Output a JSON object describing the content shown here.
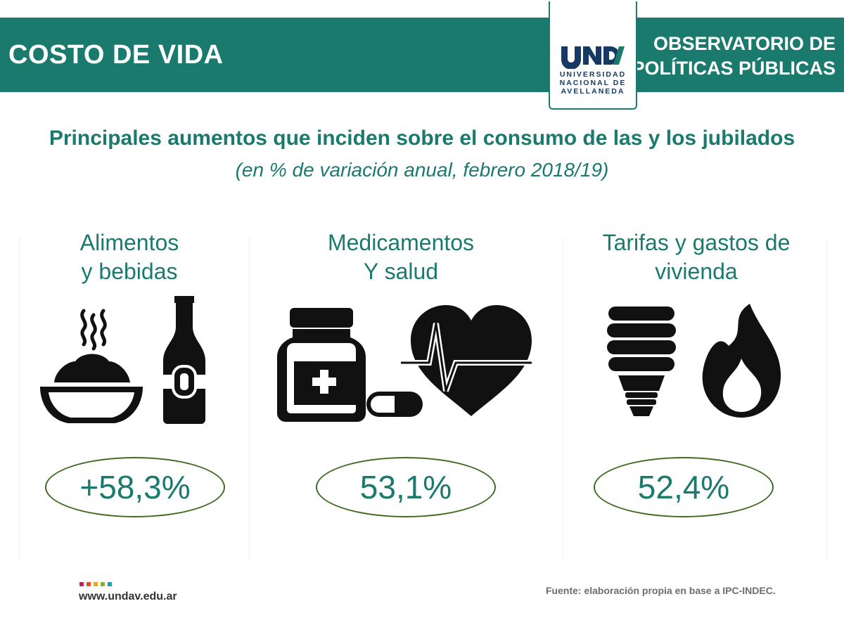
{
  "header": {
    "left_title": "COSTO DE VIDA",
    "right_title_line1": "OBSERVATORIO DE",
    "right_title_line2": "POLÍTICAS PÚBLICAS",
    "logo": {
      "mark_text": "UNDAV",
      "line1": "UNIVERSIDAD",
      "line2": "NACIONAL DE",
      "line3": "AVELLANEDA"
    }
  },
  "title": "Principales aumentos que inciden sobre el consumo de las y los jubilados",
  "subtitle": "(en % de variación anual, febrero 2018/19)",
  "categories": [
    {
      "line1": "Alimentos",
      "line2": "y bebidas",
      "value_label": "+58,3%",
      "icons": [
        "food-bowl-icon",
        "bottle-icon"
      ]
    },
    {
      "line1": "Medicamentos",
      "line2": "Y salud",
      "value_label": "53,1%",
      "icons": [
        "medicine-jar-icon",
        "capsule-icon",
        "heart-pulse-icon"
      ]
    },
    {
      "line1": "Tarifas y gastos de",
      "line2": "vivienda",
      "value_label": "52,4%",
      "icons": [
        "light-bulb-icon",
        "flame-icon"
      ]
    }
  ],
  "footer": {
    "url": "www.undav.edu.ar",
    "source": "Fuente: elaboración propia en base a IPC-INDEC.",
    "dot_colors": [
      "#c0265e",
      "#e4531c",
      "#f2a31b",
      "#8fb12a",
      "#1a9fb6"
    ]
  },
  "colors": {
    "brand_teal": "#1b7a6e",
    "logo_navy": "#163a63",
    "oval_border": "#3d6b22",
    "icon": "#111111"
  }
}
